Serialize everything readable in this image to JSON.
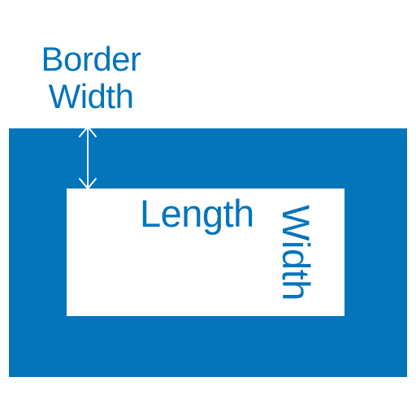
{
  "labels": {
    "border_width_line1": "Border",
    "border_width_line2": "Width",
    "length": "Length",
    "width": "Width"
  },
  "colors": {
    "brand_blue": "#0474bb",
    "background": "#ffffff",
    "inner_fill": "#ffffff",
    "arrow": "#ffffff"
  },
  "icons": {
    "border_width_indicator": "double-headed-arrow-icon"
  }
}
